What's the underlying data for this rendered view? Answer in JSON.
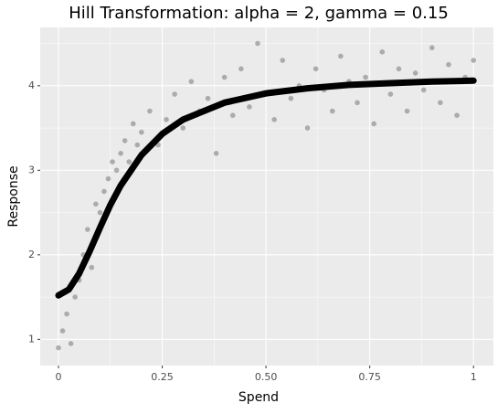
{
  "chart_data": {
    "type": "scatter",
    "title": "Hill Transformation: alpha = 2, gamma = 0.15",
    "x_label": "Spend",
    "y_label": "Response",
    "xlim": [
      -0.044,
      1.048
    ],
    "ylim": [
      0.69,
      4.69
    ],
    "xticks": [
      0,
      0.25,
      {
        "value": 0.5,
        "label": "0.50"
      },
      0.75,
      1
    ],
    "yticks": [
      1,
      2,
      3,
      4
    ],
    "grid": true,
    "minor_grid": true,
    "points": {
      "color": "#808080",
      "x": [
        0.0,
        0.01,
        0.02,
        0.03,
        0.04,
        0.05,
        0.06,
        0.07,
        0.08,
        0.09,
        0.1,
        0.11,
        0.12,
        0.13,
        0.14,
        0.15,
        0.16,
        0.17,
        0.18,
        0.19,
        0.2,
        0.22,
        0.24,
        0.26,
        0.28,
        0.3,
        0.32,
        0.34,
        0.36,
        0.38,
        0.4,
        0.42,
        0.44,
        0.46,
        0.48,
        0.5,
        0.52,
        0.54,
        0.56,
        0.58,
        0.6,
        0.62,
        0.64,
        0.66,
        0.68,
        0.7,
        0.72,
        0.74,
        0.76,
        0.78,
        0.8,
        0.82,
        0.84,
        0.86,
        0.88,
        0.9,
        0.92,
        0.94,
        0.96,
        0.98,
        1.0
      ],
      "y": [
        0.9,
        1.1,
        1.3,
        0.95,
        1.5,
        1.7,
        2.0,
        2.3,
        1.85,
        2.6,
        2.5,
        2.75,
        2.9,
        3.1,
        3.0,
        3.2,
        3.35,
        3.1,
        3.55,
        3.3,
        3.45,
        3.7,
        3.3,
        3.6,
        3.9,
        3.5,
        4.05,
        3.7,
        3.85,
        3.2,
        4.1,
        3.65,
        4.2,
        3.75,
        4.5,
        3.9,
        3.6,
        4.3,
        3.85,
        4.0,
        3.5,
        4.2,
        3.95,
        3.7,
        4.35,
        4.05,
        3.8,
        4.1,
        3.55,
        4.4,
        3.9,
        4.2,
        3.7,
        4.15,
        3.95,
        4.45,
        3.8,
        4.25,
        3.65,
        4.1,
        4.3
      ]
    },
    "fit": {
      "color": "#000000",
      "x": [
        0,
        0.025,
        0.05,
        0.075,
        0.1,
        0.125,
        0.15,
        0.2,
        0.25,
        0.3,
        0.4,
        0.5,
        0.6,
        0.7,
        0.8,
        0.9,
        1.0
      ],
      "y": [
        1.52,
        1.59,
        1.78,
        2.04,
        2.32,
        2.59,
        2.82,
        3.18,
        3.43,
        3.6,
        3.8,
        3.91,
        3.97,
        4.01,
        4.03,
        4.05,
        4.06
      ]
    }
  }
}
